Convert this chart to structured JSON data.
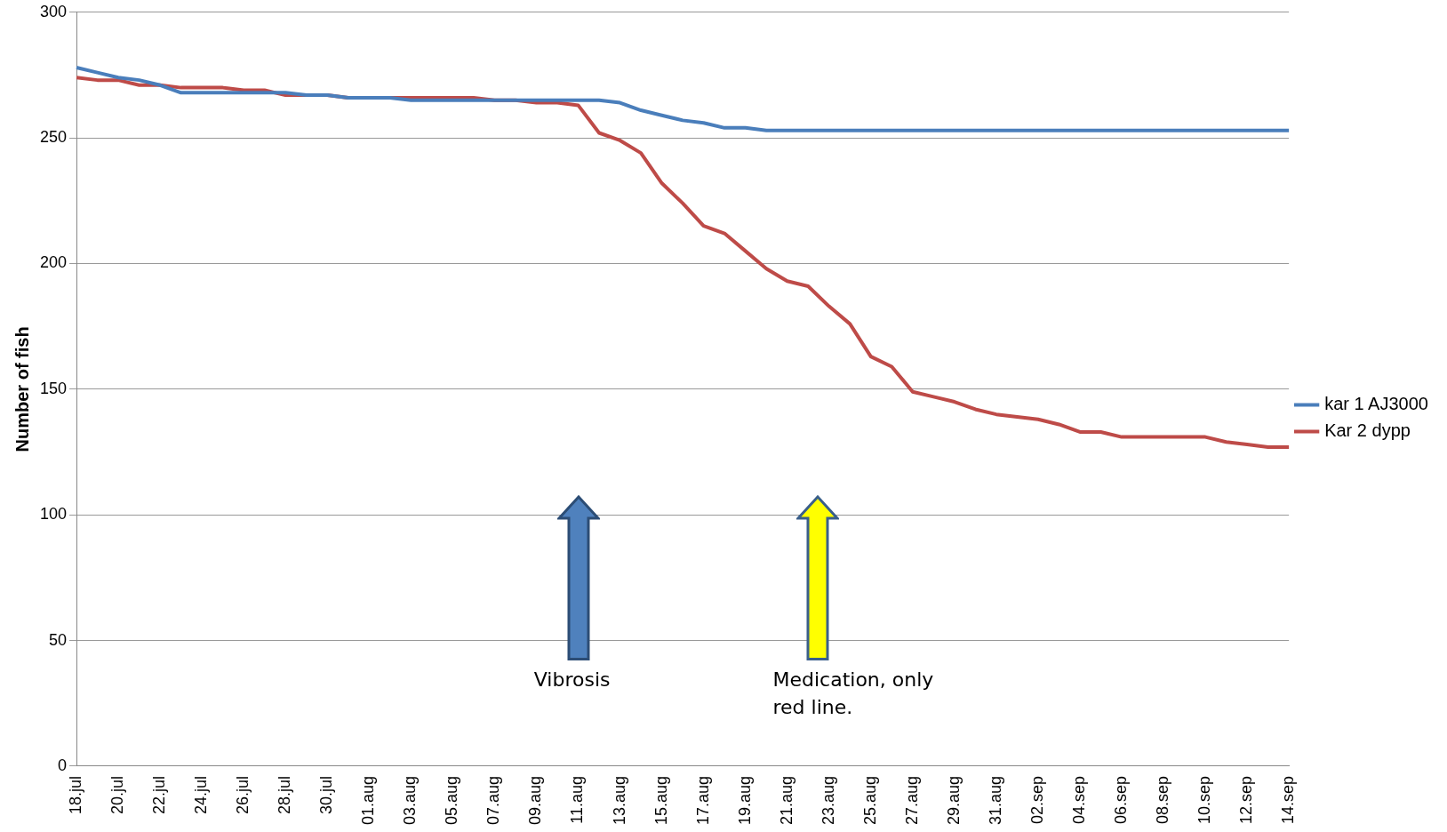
{
  "chart_data": {
    "type": "line",
    "ylabel": "Number of fish",
    "categories": [
      "18.jul",
      null,
      "20.jul",
      null,
      "22.jul",
      null,
      "24.jul",
      null,
      "26.jul",
      null,
      "28.jul",
      null,
      "30.jul",
      null,
      "01.aug",
      null,
      "03.aug",
      null,
      "05.aug",
      null,
      "07.aug",
      null,
      "09.aug",
      null,
      "11.aug",
      null,
      "13.aug",
      null,
      "15.aug",
      null,
      "17.aug",
      null,
      "19.aug",
      null,
      "21.aug",
      null,
      "23.aug",
      null,
      "25.aug",
      null,
      "27.aug",
      null,
      "29.aug",
      null,
      "31.aug",
      null,
      "02.sep",
      null,
      "04.sep",
      null,
      "06.sep",
      null,
      "08.sep",
      null,
      "10.sep",
      null,
      "12.sep",
      null,
      "14.sep"
    ],
    "series": [
      {
        "name": "kar 1 AJ3000",
        "color": "#4a7ebb",
        "values": [
          278,
          276,
          274,
          273,
          271,
          268,
          268,
          268,
          268,
          268,
          268,
          267,
          267,
          266,
          266,
          266,
          265,
          265,
          265,
          265,
          265,
          265,
          265,
          265,
          265,
          265,
          264,
          261,
          259,
          257,
          256,
          254,
          254,
          253,
          253,
          253,
          253,
          253,
          253,
          253,
          253,
          253,
          253,
          253,
          253,
          253,
          253,
          253,
          253,
          253,
          253,
          253,
          253,
          253,
          253,
          253,
          253,
          253,
          253
        ]
      },
      {
        "name": "Kar 2 dypp",
        "color": "#be4b48",
        "values": [
          274,
          273,
          273,
          271,
          271,
          270,
          270,
          270,
          269,
          269,
          267,
          267,
          267,
          266,
          266,
          266,
          266,
          266,
          266,
          266,
          265,
          265,
          264,
          264,
          263,
          252,
          249,
          244,
          232,
          224,
          215,
          212,
          205,
          198,
          193,
          191,
          183,
          176,
          163,
          159,
          149,
          147,
          145,
          142,
          140,
          139,
          138,
          136,
          133,
          133,
          131,
          131,
          131,
          131,
          131,
          129,
          128,
          127,
          127
        ]
      }
    ],
    "ylim": [
      0,
      300
    ],
    "yticks": [
      0,
      50,
      100,
      150,
      200,
      250,
      300
    ],
    "grid": "y",
    "legend": "right",
    "marker": "none",
    "line_style": "solid",
    "annotations": [
      "Vibrosis",
      "Medication, only red line."
    ]
  }
}
